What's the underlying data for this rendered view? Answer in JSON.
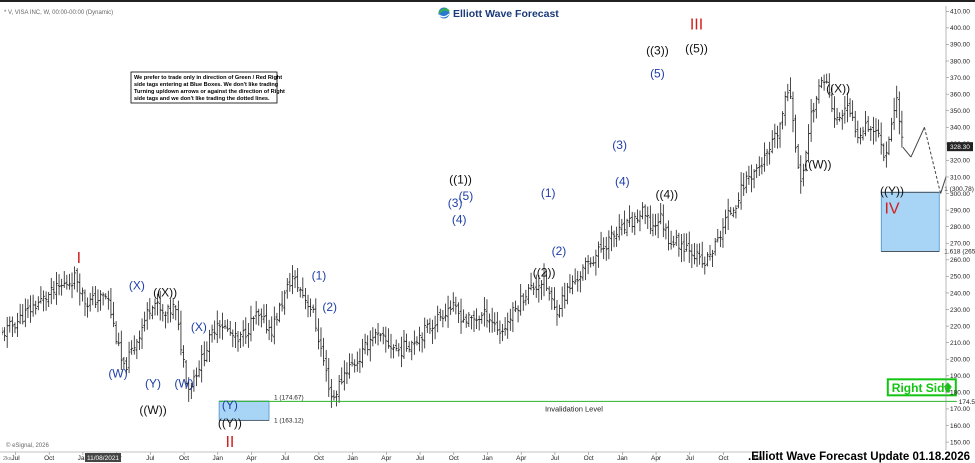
{
  "header": {
    "symbol": "* V, VISA INC, W, 00:00-00:00 (Dynamic)",
    "logo_text": "Elliott Wave Forecast",
    "logo_icon": "globe-swirl-icon"
  },
  "note": {
    "lines": [
      "We prefer to trade only in direction of Green / Red Right",
      "side tags entering at Blue Boxes. We don't like trading",
      "Turning up/down arrows or against the direction of Right",
      "side tags and we don't like trading the dotted lines."
    ]
  },
  "footer": {
    "copyright": "© eSignal, 2026",
    "title": ".Elliott Wave Forecast Update 01.18.2026",
    "corner_label": "2ks",
    "highlighted_date": "11/08/2021"
  },
  "colors": {
    "up_bar": "#1a1a1a",
    "blue_box": "#a8d4f5",
    "blue_box_border": "#4a90c8",
    "invalidation_line": "#28b428",
    "wave_black": "#111111",
    "wave_blue": "#1f3fa8",
    "wave_red": "#d21e1e",
    "right_side": "#13c413"
  },
  "chart_data": {
    "type": "ohlc-weekly",
    "symbol": "V",
    "y_range": [
      144,
      412
    ],
    "y_ticks": [
      150,
      160,
      170,
      180,
      190,
      200,
      210,
      220,
      230,
      240,
      250,
      260,
      270,
      280,
      290,
      300,
      310,
      320,
      330,
      340,
      350,
      360,
      370,
      380,
      390,
      400,
      410
    ],
    "x_range": [
      2019.4,
      2026.4
    ],
    "x_ticks": [
      {
        "label": "Jul",
        "t": 2019.5
      },
      {
        "label": "Oct",
        "t": 2019.75
      },
      {
        "label": "Jan",
        "t": 2020.0
      },
      {
        "label": "Apr",
        "t": 2020.25
      },
      {
        "label": "Jul",
        "t": 2020.5
      },
      {
        "label": "Oct",
        "t": 2020.75
      },
      {
        "label": "Jan",
        "t": 2021.0
      },
      {
        "label": "Apr",
        "t": 2021.25
      },
      {
        "label": "Jul",
        "t": 2021.5
      },
      {
        "label": "Oct",
        "t": 2021.75
      },
      {
        "label": "Jan",
        "t": 2022.0
      },
      {
        "label": "Apr",
        "t": 2022.25
      },
      {
        "label": "Jul",
        "t": 2022.5
      },
      {
        "label": "Oct",
        "t": 2022.75
      },
      {
        "label": "Jan",
        "t": 2023.0
      },
      {
        "label": "Apr",
        "t": 2023.25
      },
      {
        "label": "Jul",
        "t": 2023.5
      },
      {
        "label": "Oct",
        "t": 2023.75
      },
      {
        "label": "Jan",
        "t": 2024.0
      },
      {
        "label": "Apr",
        "t": 2024.25
      },
      {
        "label": "Jul",
        "t": 2024.5
      },
      {
        "label": "Oct",
        "t": 2024.75
      },
      {
        "label": "Jan",
        "t": 2025.0
      },
      {
        "label": "Apr",
        "t": 2025.25
      },
      {
        "label": "Jul",
        "t": 2025.5
      },
      {
        "label": "Oct",
        "t": 2025.75
      }
    ],
    "price_anchors": [
      [
        2019.4,
        215
      ],
      [
        2019.65,
        233
      ],
      [
        2019.95,
        250
      ],
      [
        2020.02,
        234
      ],
      [
        2020.18,
        238
      ],
      [
        2020.3,
        193
      ],
      [
        2020.4,
        212
      ],
      [
        2020.52,
        236
      ],
      [
        2020.6,
        225
      ],
      [
        2020.68,
        232
      ],
      [
        2020.78,
        182
      ],
      [
        2020.9,
        203
      ],
      [
        2021.0,
        224
      ],
      [
        2021.15,
        210
      ],
      [
        2021.28,
        226
      ],
      [
        2021.4,
        218
      ],
      [
        2021.55,
        250
      ],
      [
        2021.7,
        230
      ],
      [
        2021.85,
        175
      ],
      [
        2021.95,
        194
      ],
      [
        2022.05,
        200
      ],
      [
        2022.15,
        215
      ],
      [
        2022.35,
        205
      ],
      [
        2022.55,
        218
      ],
      [
        2022.72,
        232
      ],
      [
        2022.85,
        223
      ],
      [
        2023.0,
        227
      ],
      [
        2023.1,
        216
      ],
      [
        2023.28,
        240
      ],
      [
        2023.42,
        248
      ],
      [
        2023.5,
        229
      ],
      [
        2023.6,
        242
      ],
      [
        2023.75,
        258
      ],
      [
        2023.9,
        272
      ],
      [
        2024.05,
        281
      ],
      [
        2024.15,
        288
      ],
      [
        2024.22,
        279
      ],
      [
        2024.28,
        286
      ],
      [
        2024.35,
        272
      ],
      [
        2024.5,
        268
      ],
      [
        2024.6,
        256
      ],
      [
        2024.7,
        270
      ],
      [
        2024.76,
        283
      ],
      [
        2024.85,
        296
      ],
      [
        2024.92,
        309
      ],
      [
        2025.0,
        315
      ],
      [
        2025.08,
        323
      ],
      [
        2025.16,
        338
      ],
      [
        2025.24,
        366
      ],
      [
        2025.32,
        303
      ],
      [
        2025.4,
        348
      ],
      [
        2025.5,
        372
      ],
      [
        2025.58,
        342
      ],
      [
        2025.66,
        352
      ],
      [
        2025.75,
        336
      ],
      [
        2025.8,
        343
      ],
      [
        2025.9,
        336
      ],
      [
        2025.95,
        322
      ],
      [
        2026.0,
        345
      ],
      [
        2026.04,
        358
      ],
      [
        2026.08,
        328
      ]
    ],
    "last_price": "328.30",
    "last_value": 328.3,
    "projection": [
      {
        "t": 2026.08,
        "y": 328,
        "style": "solid"
      },
      {
        "t": 2026.14,
        "y": 322,
        "style": "solid"
      },
      {
        "t": 2026.24,
        "y": 340,
        "style": "solid"
      },
      {
        "t": 2026.36,
        "y": 300,
        "style": "dashed"
      },
      {
        "t": 2026.62,
        "y": 366,
        "style": "solid"
      }
    ],
    "wave_labels": [
      {
        "text": "I",
        "t": 2019.97,
        "y": 258,
        "color": "red"
      },
      {
        "text": "(W)",
        "t": 2020.26,
        "y": 189,
        "color": "blue"
      },
      {
        "text": "(X)",
        "t": 2020.4,
        "y": 242,
        "color": "blue"
      },
      {
        "text": "(Y)",
        "t": 2020.52,
        "y": 183,
        "color": "blue"
      },
      {
        "text": "((X))",
        "t": 2020.61,
        "y": 238,
        "color": "black"
      },
      {
        "text": "((W))",
        "t": 2020.52,
        "y": 167,
        "color": "black"
      },
      {
        "text": "(W)",
        "t": 2020.75,
        "y": 183,
        "color": "blue"
      },
      {
        "text": "(X)",
        "t": 2020.86,
        "y": 217,
        "color": "blue"
      },
      {
        "text": "(Y)",
        "t": 2021.09,
        "y": 170,
        "color": "blue"
      },
      {
        "text": "((Y))",
        "t": 2021.09,
        "y": 159,
        "color": "black"
      },
      {
        "text": "II",
        "t": 2021.09,
        "y": 147,
        "color": "red"
      },
      {
        "text": "(1)",
        "t": 2021.75,
        "y": 248,
        "color": "blue"
      },
      {
        "text": "(2)",
        "t": 2021.83,
        "y": 229,
        "color": "blue"
      },
      {
        "text": "(3)",
        "t": 2022.76,
        "y": 292,
        "color": "blue"
      },
      {
        "text": "(5)",
        "t": 2022.84,
        "y": 296,
        "color": "blue"
      },
      {
        "text": "((1))",
        "t": 2022.8,
        "y": 306,
        "color": "black"
      },
      {
        "text": "(4)",
        "t": 2022.79,
        "y": 282,
        "color": "blue"
      },
      {
        "text": "(1)",
        "t": 2023.45,
        "y": 298,
        "color": "blue"
      },
      {
        "text": "(2)",
        "t": 2023.53,
        "y": 263,
        "color": "blue"
      },
      {
        "text": "((2))",
        "t": 2023.42,
        "y": 250,
        "color": "black"
      },
      {
        "text": "(3)",
        "t": 2023.98,
        "y": 327,
        "color": "blue"
      },
      {
        "text": "(4)",
        "t": 2024.0,
        "y": 305,
        "color": "blue"
      },
      {
        "text": "(5)",
        "t": 2024.26,
        "y": 370,
        "color": "blue"
      },
      {
        "text": "((3))",
        "t": 2024.26,
        "y": 384,
        "color": "black"
      },
      {
        "text": "((4))",
        "t": 2024.33,
        "y": 297,
        "color": "black"
      },
      {
        "text": "III",
        "t": 2024.55,
        "y": 399,
        "color": "red"
      },
      {
        "text": "((5))",
        "t": 2024.55,
        "y": 385,
        "color": "black"
      },
      {
        "text": "((X))",
        "t": 2025.6,
        "y": 361,
        "color": "black"
      },
      {
        "text": "((W))",
        "t": 2025.45,
        "y": 315,
        "color": "black"
      },
      {
        "text": "((Y))",
        "t": 2026.0,
        "y": 299,
        "color": "black"
      },
      {
        "text": "IV",
        "t": 2026.0,
        "y": 288,
        "color": "red"
      }
    ],
    "fib_boxes": [
      {
        "t0": 2025.92,
        "t1": 2026.35,
        "top": 300.78,
        "bottom": 265.09,
        "label_top": "1 (300.78)",
        "label_bottom": "1.618 (265.09)"
      },
      {
        "t0": 2021.01,
        "t1": 2021.38,
        "top": 174.67,
        "bottom": 163.12,
        "label_top": "1 (174.67)",
        "label_bottom": "1 (163.12)"
      }
    ],
    "invalidation": {
      "t0": 2021.01,
      "t1": 2026.48,
      "y": 174.59,
      "label": "Invalidation Level",
      "value_label": "174.59"
    },
    "right_side": {
      "label": "Right Side",
      "icon": "green-arrow-up-icon"
    }
  }
}
